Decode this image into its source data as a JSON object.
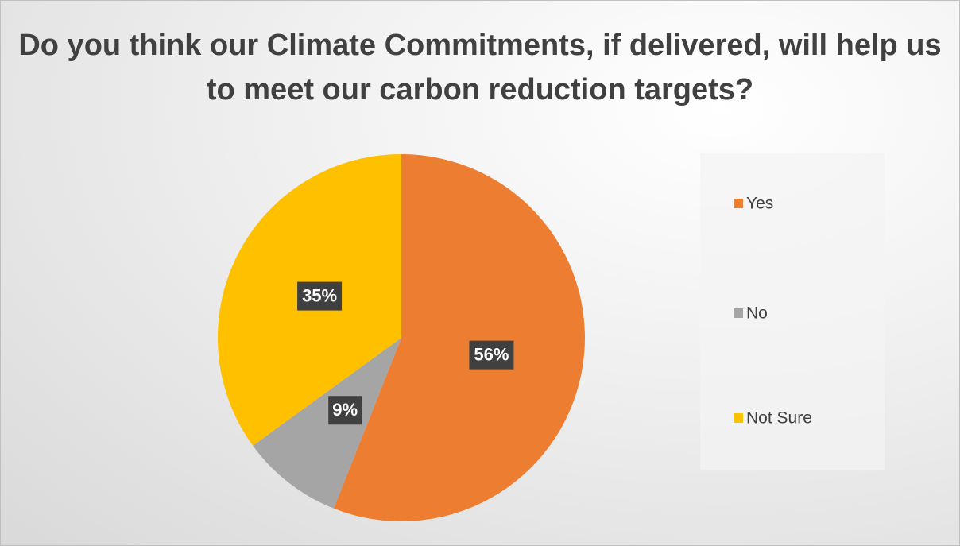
{
  "chart_data": {
    "type": "pie",
    "title": "Do you think our Climate Commitments, if delivered, will help us to meet our carbon reduction targets?",
    "categories": [
      "Yes",
      "No",
      "Not Sure"
    ],
    "values": [
      56,
      9,
      35
    ],
    "value_labels": [
      "56%",
      "9%",
      "35%"
    ],
    "colors": [
      "#ed7d31",
      "#a5a5a5",
      "#ffc000"
    ],
    "legend": "right"
  }
}
